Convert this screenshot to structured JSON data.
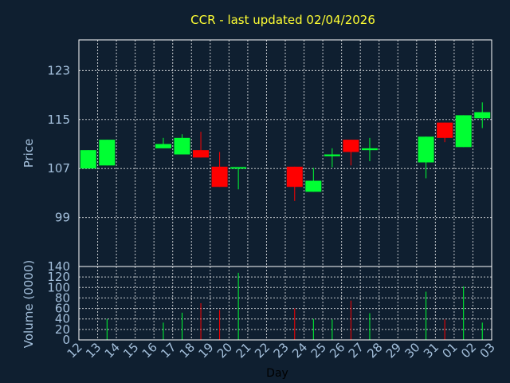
{
  "chart_data": [
    {
      "type": "candlestick",
      "title": "CCR - last updated 02/04/2026",
      "ylabel": "Price",
      "ylim": [
        91,
        128
      ],
      "yticks": [
        99,
        107,
        115,
        123
      ],
      "grid": true,
      "colors": {
        "up": "#00ff33",
        "down": "#ff0000",
        "background": "#0f1f30",
        "text": "#a4c0dc",
        "title": "#ffff33"
      },
      "candles": [
        {
          "day": "12",
          "open": 107,
          "high": 110,
          "low": 107,
          "close": 110
        },
        {
          "day": "13",
          "open": 107.5,
          "high": 111.7,
          "low": 107.5,
          "close": 111.7
        },
        {
          "day": "16",
          "open": 110.3,
          "high": 112,
          "low": 110.3,
          "close": 111
        },
        {
          "day": "17",
          "open": 109.3,
          "high": 112.6,
          "low": 109.3,
          "close": 112
        },
        {
          "day": "18",
          "open": 110,
          "high": 113,
          "low": 108.8,
          "close": 108.8
        },
        {
          "day": "19",
          "open": 107.3,
          "high": 109.7,
          "low": 104,
          "close": 104
        },
        {
          "day": "20",
          "open": 107,
          "high": 107.2,
          "low": 103.6,
          "close": 107.1
        },
        {
          "day": "23",
          "open": 107.3,
          "high": 107.3,
          "low": 101.7,
          "close": 104
        },
        {
          "day": "24",
          "open": 103.2,
          "high": 107.1,
          "low": 103.2,
          "close": 105
        },
        {
          "day": "25",
          "open": 109,
          "high": 110.3,
          "low": 107.2,
          "close": 109.3
        },
        {
          "day": "26",
          "open": 111.7,
          "high": 111.7,
          "low": 107.5,
          "close": 109.7
        },
        {
          "day": "27",
          "open": 110,
          "high": 112,
          "low": 108.2,
          "close": 110.3
        },
        {
          "day": "30",
          "open": 108,
          "high": 112.2,
          "low": 105.4,
          "close": 112.2
        },
        {
          "day": "31",
          "open": 114.5,
          "high": 114.5,
          "low": 111.3,
          "close": 112
        },
        {
          "day": "01",
          "open": 110.5,
          "high": 115.7,
          "low": 110.5,
          "close": 115.7
        },
        {
          "day": "02",
          "open": 115.2,
          "high": 117.8,
          "low": 113.6,
          "close": 116.2
        }
      ]
    },
    {
      "type": "bar",
      "ylabel": "Volume (0000)",
      "xlabel": "Day",
      "ylim": [
        0,
        140
      ],
      "yticks": [
        0,
        20,
        40,
        60,
        80,
        100,
        120,
        140
      ],
      "grid": true,
      "x_tick_labels": [
        "12",
        "13",
        "14",
        "15",
        "16",
        "17",
        "18",
        "19",
        "20",
        "21",
        "22",
        "23",
        "24",
        "25",
        "26",
        "27",
        "28",
        "29",
        "30",
        "31",
        "01",
        "02",
        "03"
      ],
      "bars": [
        {
          "day": "12",
          "value": 0,
          "color": "#00ff33"
        },
        {
          "day": "13",
          "value": 40,
          "color": "#00ff33"
        },
        {
          "day": "16",
          "value": 33,
          "color": "#00ff33"
        },
        {
          "day": "17",
          "value": 52,
          "color": "#00ff33"
        },
        {
          "day": "18",
          "value": 70,
          "color": "#ff0000"
        },
        {
          "day": "19",
          "value": 57,
          "color": "#ff0000"
        },
        {
          "day": "20",
          "value": 128,
          "color": "#00ff33"
        },
        {
          "day": "23",
          "value": 60,
          "color": "#ff0000"
        },
        {
          "day": "24",
          "value": 40,
          "color": "#00ff33"
        },
        {
          "day": "25",
          "value": 39,
          "color": "#00ff33"
        },
        {
          "day": "26",
          "value": 75,
          "color": "#ff0000"
        },
        {
          "day": "27",
          "value": 51,
          "color": "#00ff33"
        },
        {
          "day": "30",
          "value": 92,
          "color": "#00ff33"
        },
        {
          "day": "31",
          "value": 39,
          "color": "#ff0000"
        },
        {
          "day": "01",
          "value": 102,
          "color": "#00ff33"
        },
        {
          "day": "02",
          "value": 33,
          "color": "#00ff33"
        }
      ]
    }
  ]
}
